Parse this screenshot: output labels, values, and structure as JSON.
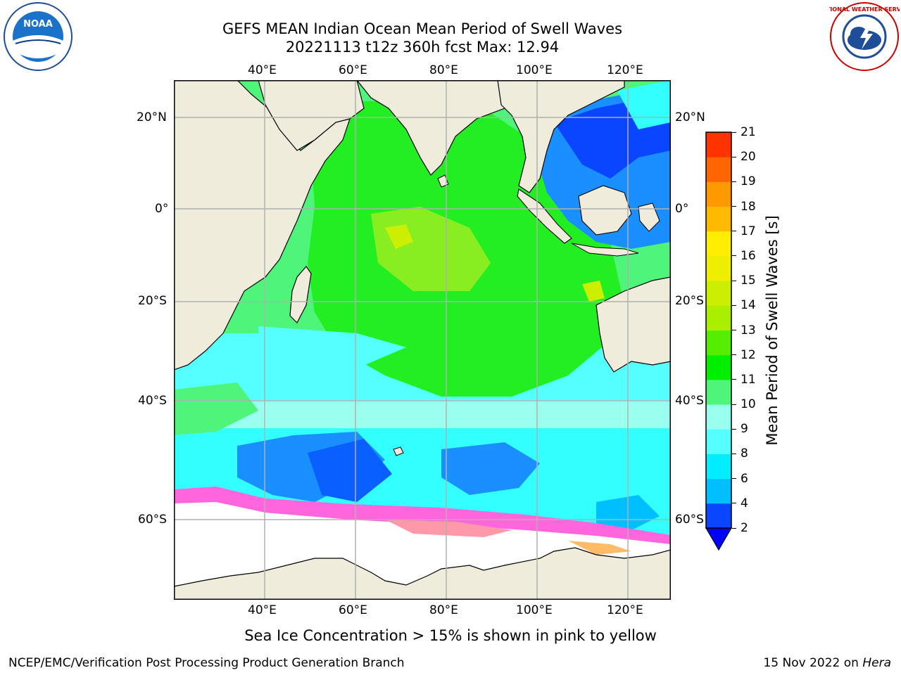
{
  "header": {
    "title_line1": "GEFS MEAN Indian Ocean Mean Period of Swell Waves",
    "title_line2": "20221113 t12z 360h fcst   Max: 12.94"
  },
  "logos": {
    "left": {
      "name": "noaa-logo",
      "text": "NOAA"
    },
    "right": {
      "name": "nws-logo",
      "text": "NATIONAL WEATHER SERVICE"
    }
  },
  "map": {
    "lon_labels": [
      "40°E",
      "60°E",
      "80°E",
      "100°E",
      "120°E"
    ],
    "lat_labels": [
      "20°N",
      "0°",
      "20°S",
      "40°S",
      "60°S"
    ],
    "colors": {
      "land": "#efecdc",
      "ocean_default": "#33ffff",
      "ice": "#ffffff",
      "coast": "#000000",
      "grid": "#b0b0b0"
    }
  },
  "colorbar": {
    "label": "Mean Period of Swell Waves [s]",
    "ticks": [
      "2",
      "4",
      "6",
      "8",
      "9",
      "10",
      "11",
      "12",
      "13",
      "14",
      "15",
      "16",
      "17",
      "18",
      "19",
      "20",
      "21"
    ],
    "colors": [
      "#0a46ff",
      "#00bfff",
      "#00eeff",
      "#55ffff",
      "#99ffee",
      "#4ff57a",
      "#00ee00",
      "#55ee00",
      "#aaee00",
      "#ccee00",
      "#eeee00",
      "#ffee00",
      "#ffbb00",
      "#ff9900",
      "#ff6600",
      "#ff3300"
    ],
    "under_color": "#0000ff"
  },
  "notes": {
    "sea_ice": "Sea Ice Concentration > 15% is shown in pink to yellow"
  },
  "footer": {
    "left": "NCEP/EMC/Verification Post Processing Product Generation Branch",
    "right_prefix": "15 Nov 2022 on ",
    "right_host": "Hera"
  }
}
